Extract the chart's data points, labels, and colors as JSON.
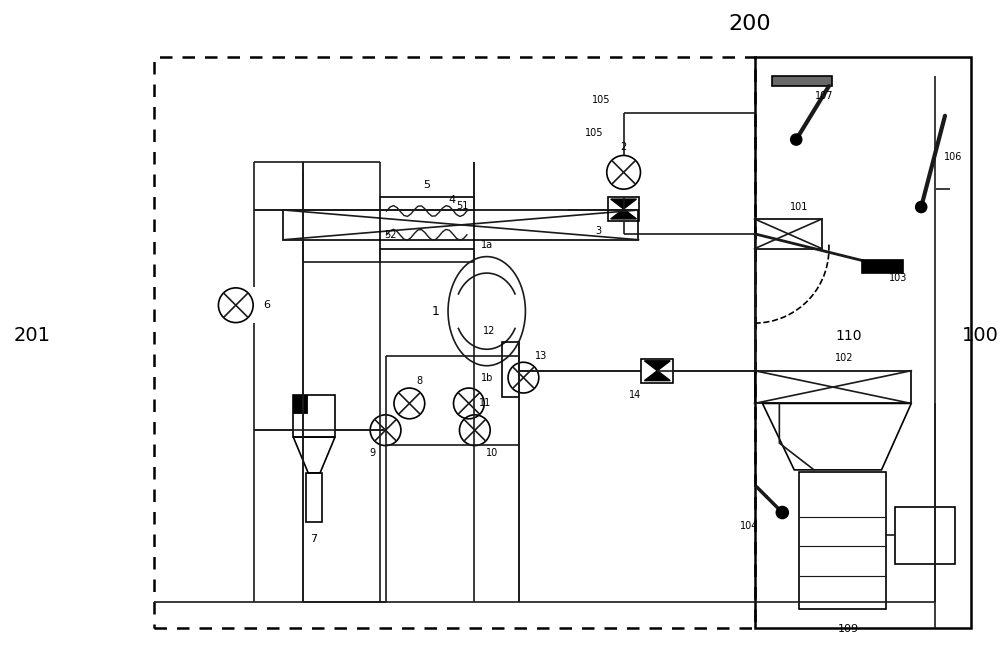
{
  "bg_color": "#ffffff",
  "lc": "#1a1a1a",
  "title": "200",
  "lbl_201": "201",
  "lbl_100": "100",
  "lbl_110": "110",
  "lbl_109": "109"
}
